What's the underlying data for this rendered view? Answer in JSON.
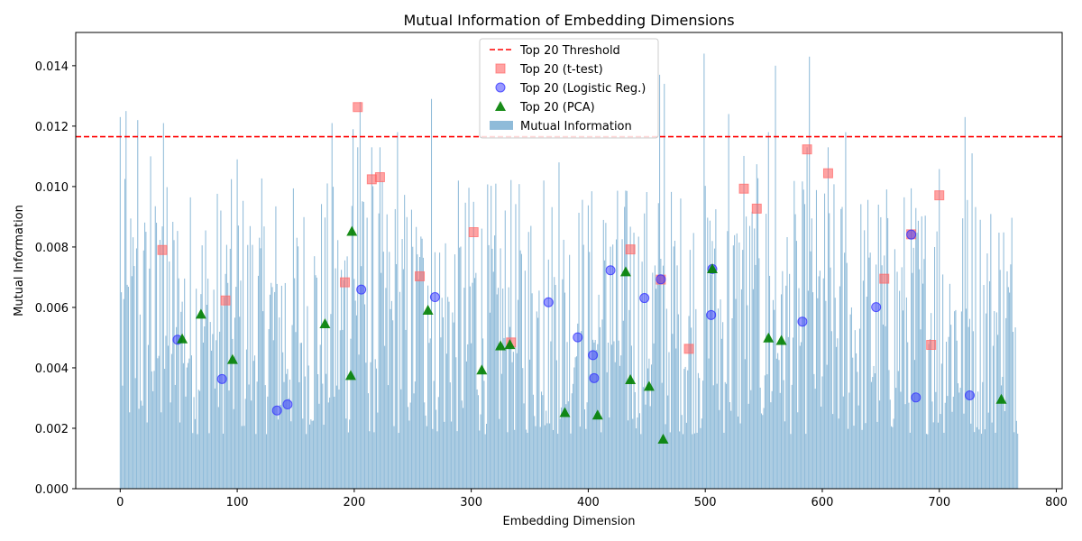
{
  "chart_data": {
    "type": "bar",
    "title": "Mutual Information of Embedding Dimensions",
    "xlabel": "Embedding Dimension",
    "ylabel": "Mutual Information",
    "xlim": [
      -38,
      805
    ],
    "ylim": [
      0,
      0.0151
    ],
    "xticks": [
      0,
      100,
      200,
      300,
      400,
      500,
      600,
      700,
      800
    ],
    "yticks": [
      0,
      0.002,
      0.004,
      0.006,
      0.008,
      0.01,
      0.012,
      0.014
    ],
    "ytick_labels": [
      "0.000",
      "0.002",
      "0.004",
      "0.006",
      "0.008",
      "0.010",
      "0.012",
      "0.014"
    ],
    "grid": false,
    "legend_position": "top-center",
    "n_dimensions": 768,
    "threshold": {
      "name": "Top 20 Threshold",
      "value": 0.01165,
      "color": "#ff0000",
      "style": "dashed"
    },
    "mi_series": {
      "name": "Mutual Information",
      "color": "#1f77b4",
      "opacity": 0.5,
      "notable_values": [
        [
          0,
          0.0123
        ],
        [
          5,
          0.0125
        ],
        [
          15,
          0.0122
        ],
        [
          26,
          0.011
        ],
        [
          37,
          0.0121
        ],
        [
          100,
          0.0109
        ],
        [
          181,
          0.0121
        ],
        [
          199,
          0.0119
        ],
        [
          205,
          0.0128
        ],
        [
          237,
          0.0118
        ],
        [
          266,
          0.0129
        ],
        [
          362,
          0.0102
        ],
        [
          375,
          0.0108
        ],
        [
          461,
          0.0137
        ],
        [
          465,
          0.0134
        ],
        [
          499,
          0.0144
        ],
        [
          520,
          0.0124
        ],
        [
          554,
          0.0118
        ],
        [
          560,
          0.014
        ],
        [
          589,
          0.0143
        ],
        [
          620,
          0.0118
        ],
        [
          722,
          0.0123
        ],
        [
          728,
          0.0111
        ]
      ]
    },
    "ttest": {
      "name": "Top 20 (t-test)",
      "color": "#ff6666",
      "marker": "square",
      "points": [
        [
          36,
          0.0079
        ],
        [
          90,
          0.00623
        ],
        [
          192,
          0.00683
        ],
        [
          203,
          0.01263
        ],
        [
          215,
          0.01024
        ],
        [
          222,
          0.01031
        ],
        [
          256,
          0.00703
        ],
        [
          302,
          0.00849
        ],
        [
          334,
          0.00484
        ],
        [
          436,
          0.00792
        ],
        [
          462,
          0.00692
        ],
        [
          486,
          0.00463
        ],
        [
          533,
          0.00993
        ],
        [
          544,
          0.00927
        ],
        [
          587,
          0.01123
        ],
        [
          605,
          0.01044
        ],
        [
          653,
          0.00695
        ],
        [
          676,
          0.00842
        ],
        [
          693,
          0.00476
        ],
        [
          700,
          0.00971
        ]
      ]
    },
    "logreg": {
      "name": "Top 20 (Logistic Reg.)",
      "color": "#3333ff",
      "marker": "circle",
      "points": [
        [
          49,
          0.00493
        ],
        [
          87,
          0.00363
        ],
        [
          134,
          0.00259
        ],
        [
          143,
          0.00279
        ],
        [
          206,
          0.00659
        ],
        [
          269,
          0.00634
        ],
        [
          366,
          0.00617
        ],
        [
          391,
          0.00501
        ],
        [
          404,
          0.00442
        ],
        [
          405,
          0.00366
        ],
        [
          419,
          0.00723
        ],
        [
          448,
          0.00631
        ],
        [
          462,
          0.00693
        ],
        [
          505,
          0.00575
        ],
        [
          506,
          0.00727
        ],
        [
          583,
          0.00553
        ],
        [
          646,
          0.00601
        ],
        [
          676,
          0.00841
        ],
        [
          680,
          0.00302
        ],
        [
          726,
          0.00309
        ]
      ]
    },
    "pca": {
      "name": "Top 20 (PCA)",
      "color": "#008000",
      "marker": "triangle",
      "points": [
        [
          53,
          0.00496
        ],
        [
          69,
          0.00578
        ],
        [
          96,
          0.00428
        ],
        [
          175,
          0.00546
        ],
        [
          197,
          0.00375
        ],
        [
          198,
          0.00852
        ],
        [
          263,
          0.00591
        ],
        [
          309,
          0.00393
        ],
        [
          325,
          0.00473
        ],
        [
          333,
          0.00477
        ],
        [
          380,
          0.00252
        ],
        [
          408,
          0.00244
        ],
        [
          432,
          0.00718
        ],
        [
          436,
          0.00361
        ],
        [
          452,
          0.00339
        ],
        [
          464,
          0.00164
        ],
        [
          506,
          0.00728
        ],
        [
          554,
          0.00499
        ],
        [
          565,
          0.00491
        ],
        [
          753,
          0.00296
        ]
      ]
    }
  }
}
